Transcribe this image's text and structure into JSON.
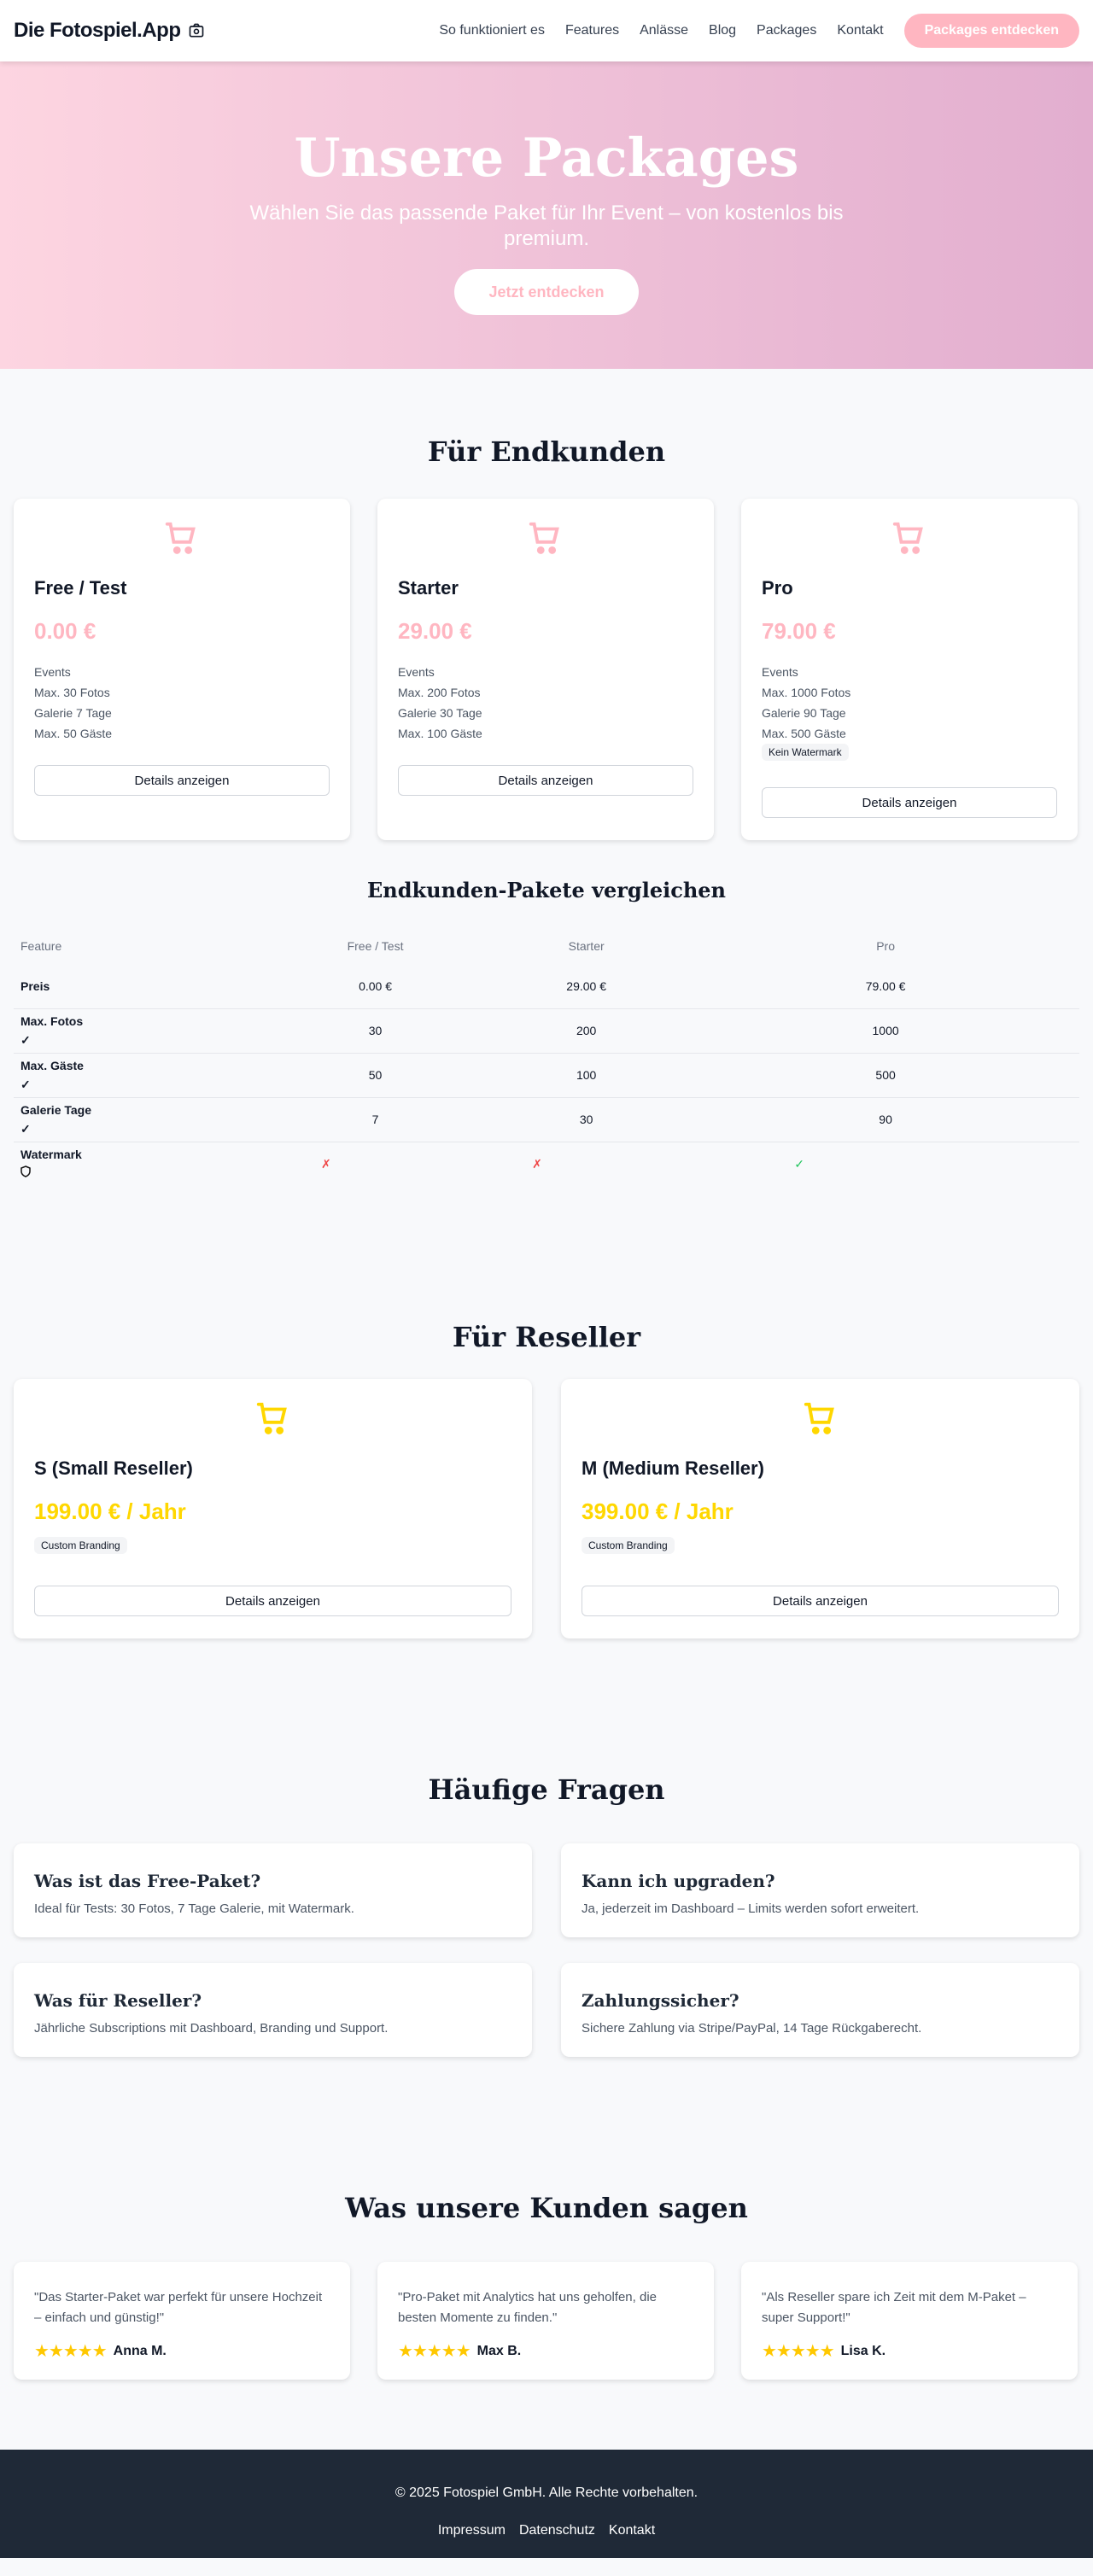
{
  "nav": {
    "logo": "Die Fotospiel.App",
    "links": [
      "So funktioniert es",
      "Features",
      "Anlässe",
      "Blog",
      "Packages",
      "Kontakt"
    ],
    "cta": "Packages entdecken"
  },
  "hero": {
    "title": "Unsere Packages",
    "subtitle": "Wählen Sie das passende Paket für Ihr Event – von kostenlos bis premium.",
    "cta": "Jetzt entdecken"
  },
  "colors": {
    "accent": "#ffb6c1",
    "reseller": "#ffd700",
    "footer": "#1f2937"
  },
  "endkunden": {
    "heading": "Für Endkunden",
    "details_label": "Details anzeigen",
    "packages": [
      {
        "name": "Free / Test",
        "price": "0.00 €",
        "features": [
          "Events",
          "Max. 30 Fotos",
          "Galerie 7 Tage",
          "Max. 50 Gäste"
        ]
      },
      {
        "name": "Starter",
        "price": "29.00 €",
        "features": [
          "Events",
          "Max. 200 Fotos",
          "Galerie 30 Tage",
          "Max. 100 Gäste"
        ]
      },
      {
        "name": "Pro",
        "price": "79.00 €",
        "features": [
          "Events",
          "Max. 1000 Fotos",
          "Galerie 90 Tage",
          "Max. 500 Gäste"
        ],
        "badge": "Kein Watermark"
      }
    ]
  },
  "compare": {
    "heading": "Endkunden-Pakete vergleichen",
    "columns": [
      "Feature",
      "Free / Test",
      "Starter",
      "Pro"
    ],
    "rows": [
      {
        "feature": "Preis",
        "values": [
          "0.00 €",
          "29.00 €",
          "79.00 €"
        ]
      },
      {
        "feature": "Max. Fotos",
        "icon": "check-icon",
        "values": [
          "30",
          "200",
          "1000"
        ]
      },
      {
        "feature": "Max. Gäste",
        "icon": "check-icon",
        "values": [
          "50",
          "100",
          "500"
        ]
      },
      {
        "feature": "Galerie Tage",
        "icon": "check-icon",
        "values": [
          "7",
          "30",
          "90"
        ]
      },
      {
        "feature": "Watermark",
        "icon": "shield-icon",
        "values": [
          "✗",
          "✗",
          "✓"
        ]
      }
    ]
  },
  "reseller": {
    "heading": "Für Reseller",
    "details_label": "Details anzeigen",
    "packages": [
      {
        "name": "S (Small Reseller)",
        "price": "199.00 € / Jahr",
        "badge": "Custom Branding"
      },
      {
        "name": "M (Medium Reseller)",
        "price": "399.00 € / Jahr",
        "badge": "Custom Branding"
      }
    ]
  },
  "faq": {
    "heading": "Häufige Fragen",
    "items": [
      {
        "q": "Was ist das Free-Paket?",
        "a": "Ideal für Tests: 30 Fotos, 7 Tage Galerie, mit Watermark."
      },
      {
        "q": "Kann ich upgraden?",
        "a": "Ja, jederzeit im Dashboard – Limits werden sofort erweitert."
      },
      {
        "q": "Was für Reseller?",
        "a": "Jährliche Subscriptions mit Dashboard, Branding und Support."
      },
      {
        "q": "Zahlungssicher?",
        "a": "Sichere Zahlung via Stripe/PayPal, 14 Tage Rückgaberecht."
      }
    ]
  },
  "testimonials": {
    "heading": "Was unsere Kunden sagen",
    "items": [
      {
        "text": "\"Das Starter-Paket war perfekt für unsere Hochzeit – einfach und günstig!\"",
        "name": "Anna M.",
        "rating": 5
      },
      {
        "text": "\"Pro-Paket mit Analytics hat uns geholfen, die besten Momente zu finden.\"",
        "name": "Max B.",
        "rating": 5
      },
      {
        "text": "\"Als Reseller spare ich Zeit mit dem M-Paket – super Support!\"",
        "name": "Lisa K.",
        "rating": 5
      }
    ]
  },
  "footer": {
    "copyright": "© 2025 Fotospiel GmbH. Alle Rechte vorbehalten.",
    "links": [
      "Impressum",
      "Datenschutz",
      "Kontakt"
    ]
  }
}
